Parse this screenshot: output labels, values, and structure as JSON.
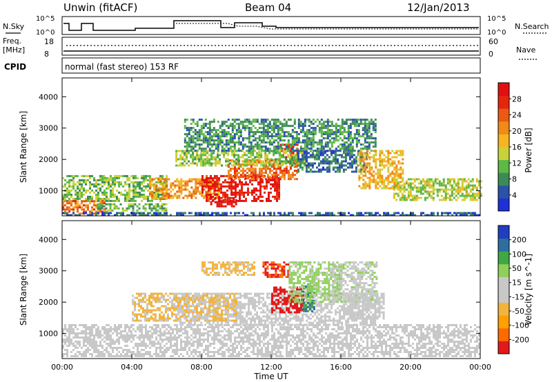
{
  "header": {
    "station": "Unwin (fitACF)",
    "beam": "Beam 04",
    "date": "12/Jan/2013"
  },
  "top_panels": {
    "nsky_label": "N.Sky",
    "nsearch_label": "N.Search",
    "nsky_ticks": [
      "10^5",
      "10^0"
    ],
    "nsearch_ticks": [
      "10^5",
      "10^0"
    ],
    "freq_label": "Freq.",
    "freq_unit": "[MHz]",
    "freq_ticks": [
      "18",
      "8"
    ],
    "nave_label": "Nave",
    "nave_ticks": [
      "60",
      "0"
    ],
    "cpid_label": "CPID",
    "cpid_text": "normal (fast stereo) 153 RF"
  },
  "colors": {
    "power_scale": [
      "#2030d8",
      "#2a52a8",
      "#3d8a58",
      "#5db845",
      "#c8d23a",
      "#f7b51f",
      "#f08a18",
      "#ea5a13",
      "#e5260f",
      "#e01010"
    ],
    "velocity_scale": [
      "#e31a1c",
      "#ff6a00",
      "#ff9f00",
      "#f2b43c",
      "#c8c8c8",
      "#c8c8c8",
      "#8fd05a",
      "#3fa845",
      "#2e6e9e",
      "#1f3fbf"
    ],
    "ground_scatter": "#c8c8c8"
  },
  "chart_data": [
    {
      "type": "heatmap",
      "title": "Power",
      "xlabel": "Time UT",
      "ylabel": "Slant Range [km]",
      "x_ticks": [
        "00:00",
        "04:00",
        "08:00",
        "12:00",
        "16:00",
        "20:00",
        "00:00"
      ],
      "y_ticks": [
        1000,
        2000,
        3000,
        4000
      ],
      "ylim": [
        200,
        4600
      ],
      "xlim_hours": [
        0,
        24
      ],
      "colorbar": {
        "label": "Power [dB]",
        "ticks": [
          4,
          8,
          12,
          16,
          20,
          24,
          28
        ],
        "range": [
          0,
          30
        ]
      },
      "regions": [
        {
          "t0": 0.0,
          "t1": 6.0,
          "r0": 700,
          "r1": 1500,
          "value": 11
        },
        {
          "t0": 0.0,
          "t1": 2.5,
          "r0": 300,
          "r1": 700,
          "value": 21
        },
        {
          "t0": 2.0,
          "t1": 6.0,
          "r0": 350,
          "r1": 600,
          "value": 10
        },
        {
          "t0": 5.0,
          "t1": 9.0,
          "r0": 800,
          "r1": 1400,
          "value": 19
        },
        {
          "t0": 8.0,
          "t1": 12.5,
          "r0": 700,
          "r1": 1500,
          "value": 27
        },
        {
          "t0": 8.5,
          "t1": 10.0,
          "r0": 500,
          "r1": 800,
          "value": 28
        },
        {
          "t0": 9.5,
          "t1": 13.5,
          "r0": 1400,
          "r1": 2000,
          "value": 22
        },
        {
          "t0": 12.5,
          "t1": 13.5,
          "r0": 2050,
          "r1": 2500,
          "value": 27
        },
        {
          "t0": 6.5,
          "t1": 14.0,
          "r0": 1800,
          "r1": 2300,
          "value": 12
        },
        {
          "t0": 7.0,
          "t1": 18.0,
          "r0": 2300,
          "r1": 3300,
          "value": 8
        },
        {
          "t0": 13.5,
          "t1": 17.5,
          "r0": 1600,
          "r1": 2300,
          "value": 6
        },
        {
          "t0": 17.0,
          "t1": 19.5,
          "r0": 1100,
          "r1": 2300,
          "value": 17
        },
        {
          "t0": 19.0,
          "t1": 24.0,
          "r0": 700,
          "r1": 1400,
          "value": 13
        },
        {
          "t0": 0.0,
          "t1": 24.0,
          "r0": 200,
          "r1": 320,
          "value": 5
        }
      ]
    },
    {
      "type": "heatmap",
      "title": "Velocity",
      "xlabel": "Time UT",
      "ylabel": "Slant Range [km]",
      "x_ticks": [
        "00:00",
        "04:00",
        "08:00",
        "12:00",
        "16:00",
        "20:00",
        "00:00"
      ],
      "y_ticks": [
        1000,
        2000,
        3000,
        4000
      ],
      "ylim": [
        200,
        4600
      ],
      "xlim_hours": [
        0,
        24
      ],
      "colorbar": {
        "label": "Velocity [m s^-1]",
        "ticks": [
          -200,
          -100,
          -50,
          -15,
          15,
          50,
          100,
          200
        ],
        "range": [
          -250,
          250
        ]
      },
      "regions": [
        {
          "t0": 0.0,
          "t1": 24.0,
          "r0": 300,
          "r1": 1300,
          "value": 0,
          "ground_scatter": true
        },
        {
          "t0": 6.5,
          "t1": 18.0,
          "r0": 1300,
          "r1": 2300,
          "value": 0,
          "ground_scatter": true
        },
        {
          "t0": 4.0,
          "t1": 10.0,
          "r0": 1400,
          "r1": 2300,
          "value": -55
        },
        {
          "t0": 12.0,
          "t1": 13.8,
          "r0": 1700,
          "r1": 2500,
          "value": -220
        },
        {
          "t0": 11.5,
          "t1": 13.0,
          "r0": 2800,
          "r1": 3300,
          "value": -200
        },
        {
          "t0": 13.7,
          "t1": 14.5,
          "r0": 1700,
          "r1": 2600,
          "value": 150
        },
        {
          "t0": 13.0,
          "t1": 16.0,
          "r0": 2000,
          "r1": 3300,
          "value": 60
        },
        {
          "t0": 15.5,
          "t1": 18.0,
          "r0": 2000,
          "r1": 3300,
          "value": 40
        },
        {
          "t0": 16.5,
          "t1": 18.5,
          "r0": 1500,
          "r1": 2300,
          "value": 30
        },
        {
          "t0": 8.0,
          "t1": 11.0,
          "r0": 2900,
          "r1": 3300,
          "value": -60
        }
      ]
    }
  ]
}
